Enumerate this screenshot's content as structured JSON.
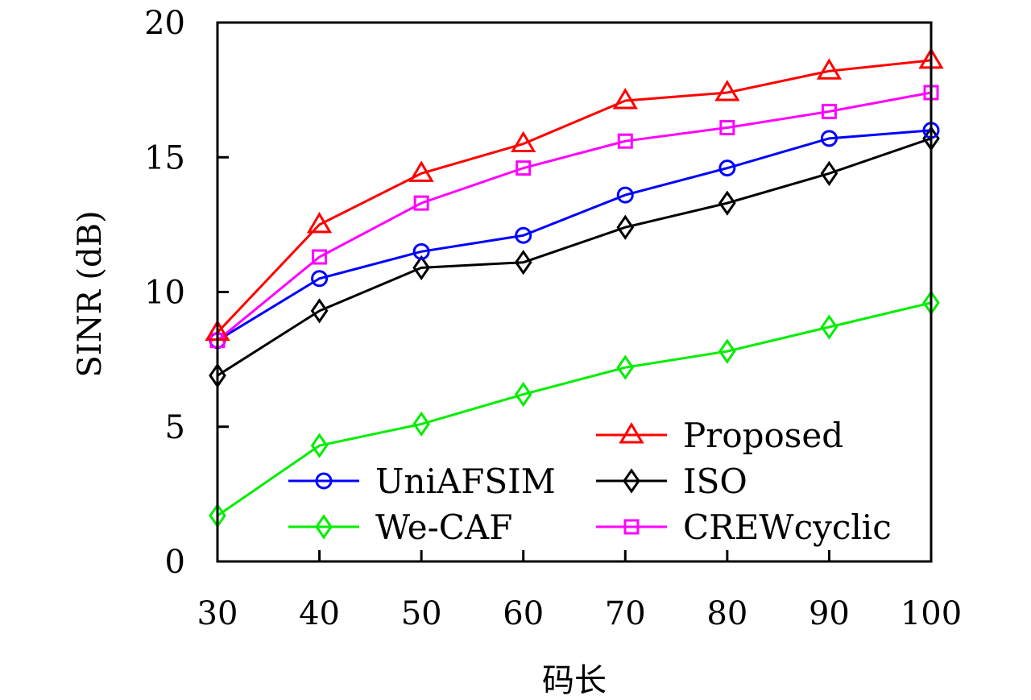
{
  "chart_data": {
    "type": "line",
    "title": "",
    "xlabel": "码长",
    "ylabel": "SINR (dB)",
    "xlim": [
      30,
      100
    ],
    "ylim": [
      0,
      20
    ],
    "x": [
      30,
      40,
      50,
      60,
      70,
      80,
      90,
      100
    ],
    "xticks": [
      "30",
      "40",
      "50",
      "60",
      "70",
      "80",
      "90",
      "100"
    ],
    "yticks": [
      "0",
      "5",
      "10",
      "15",
      "20"
    ],
    "ytick_values": [
      0,
      5,
      10,
      15,
      20
    ],
    "grid": false,
    "legend_position": "bottom-right",
    "series": [
      {
        "name": "Proposed",
        "color": "#ff0000",
        "marker": "triangle",
        "values": [
          8.5,
          12.5,
          14.4,
          15.5,
          17.1,
          17.4,
          18.2,
          18.6
        ]
      },
      {
        "name": "UniAFSIM",
        "color": "#0000ff",
        "marker": "circle",
        "values": [
          8.2,
          10.5,
          11.5,
          12.1,
          13.6,
          14.6,
          15.7,
          16.0
        ]
      },
      {
        "name": "ISO",
        "color": "#000000",
        "marker": "diamond",
        "values": [
          6.9,
          9.3,
          10.9,
          11.1,
          12.4,
          13.3,
          14.4,
          15.7
        ]
      },
      {
        "name": "We-CAF",
        "color": "#00ee00",
        "marker": "diamond",
        "values": [
          1.7,
          4.3,
          5.1,
          6.2,
          7.2,
          7.8,
          8.7,
          9.6
        ]
      },
      {
        "name": "CREWcyclic",
        "color": "#ff00ff",
        "marker": "square",
        "values": [
          8.2,
          11.3,
          13.3,
          14.6,
          15.6,
          16.1,
          16.7,
          17.4
        ]
      }
    ]
  }
}
